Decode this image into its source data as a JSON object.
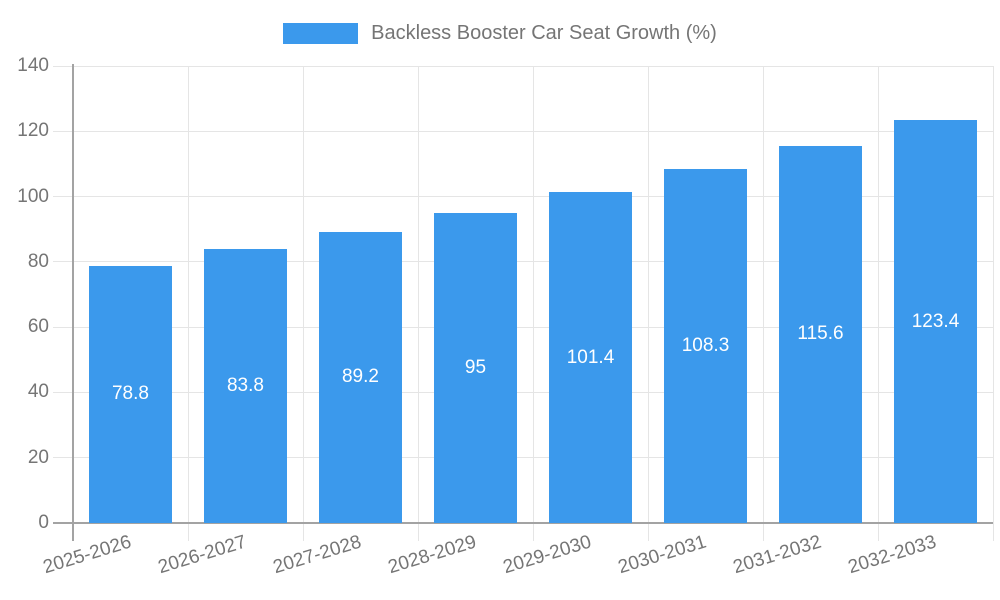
{
  "style": {
    "background": "#ffffff",
    "bar_color": "#3B99EC",
    "axis_label_color": "#757575",
    "legend_label_color": "#757575",
    "grid_color": "#e5e5e5",
    "axis_line_color": "#a3a3a3",
    "value_label_color": "#ffffff"
  },
  "chart_data": {
    "type": "bar",
    "title": "",
    "categories": [
      "2025-2026",
      "2026-2027",
      "2027-2028",
      "2028-2029",
      "2029-2030",
      "2030-2031",
      "2031-2032",
      "2032-2033"
    ],
    "series": [
      {
        "name": "Backless Booster Car Seat Growth (%)",
        "values": [
          78.8,
          83.8,
          89.2,
          95,
          101.4,
          108.3,
          115.6,
          123.4
        ],
        "color": "#3B99EC"
      }
    ],
    "xlabel": "",
    "ylabel": "",
    "ylim": [
      0,
      140
    ],
    "yticks": [
      0,
      20,
      40,
      60,
      80,
      100,
      120,
      140
    ],
    "grid": true,
    "legend_position": "top-center",
    "value_labels": {
      "position": "inside-center",
      "color": "#ffffff"
    }
  }
}
